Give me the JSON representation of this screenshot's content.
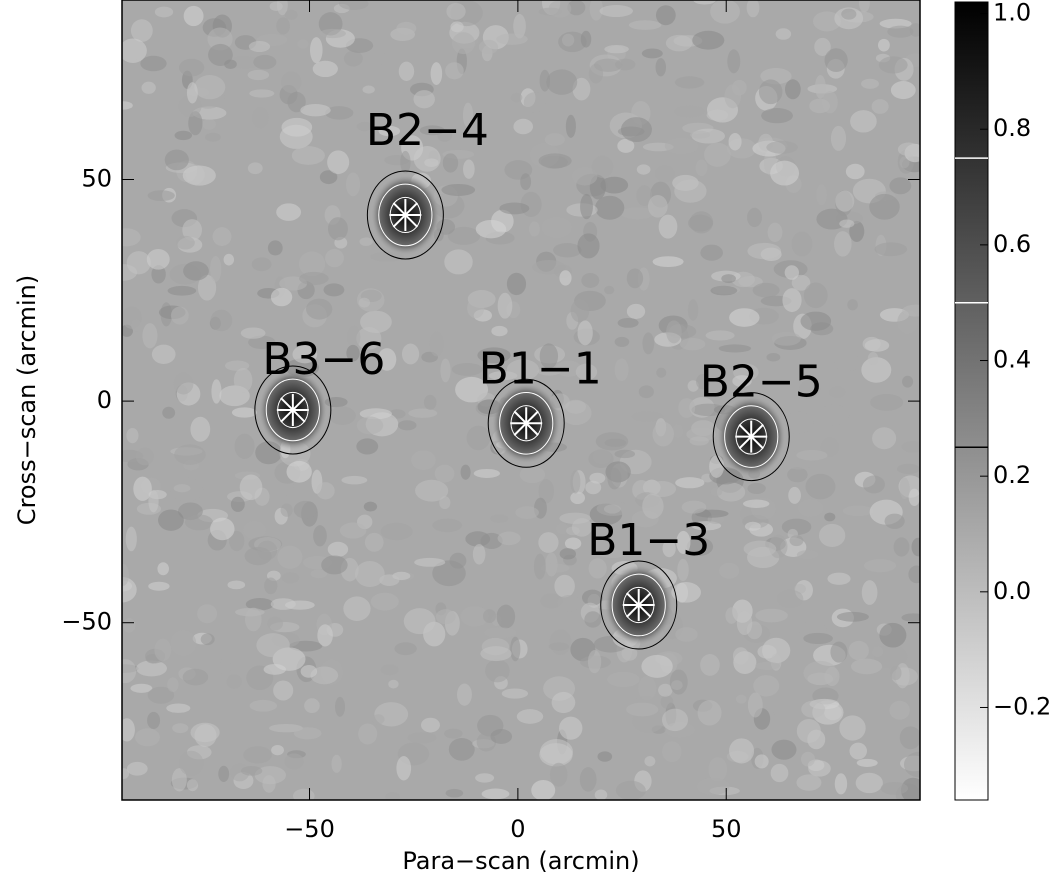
{
  "chart_data": {
    "type": "map",
    "x_label": "Para−scan (arcmin)",
    "y_label": "Cross−scan (arcmin)",
    "xlim": [
      -95,
      96.5
    ],
    "ylim": [
      -90,
      90.5
    ],
    "xticks": [
      {
        "value": -50,
        "label": "−50"
      },
      0,
      50
    ],
    "yticks": [
      {
        "value": -50,
        "label": "−50"
      },
      0,
      50
    ],
    "colorbar": {
      "lim": [
        -0.36,
        1.02
      ],
      "ticks": [
        {
          "value": -0.2,
          "label": "−0.2"
        },
        {
          "value": 0,
          "label": "0.0"
        },
        {
          "value": 0.2,
          "label": "0.2"
        },
        {
          "value": 0.4,
          "label": "0.4"
        },
        {
          "value": 0.6,
          "label": "0.6"
        },
        {
          "value": 0.8,
          "label": "0.8"
        },
        {
          "value": 1,
          "label": "1.0"
        }
      ]
    },
    "contour_levels": [
      {
        "value": 0.25,
        "color": "#000000"
      },
      {
        "value": 0.5,
        "color": "#ffffff"
      },
      {
        "value": 0.75,
        "color": "#ffffff"
      }
    ],
    "sources": [
      {
        "name": "B2−4",
        "x": -27,
        "y": 42
      },
      {
        "name": "B3−6",
        "x": -54,
        "y": -2
      },
      {
        "name": "B1−1",
        "x": 2,
        "y": -5
      },
      {
        "name": "B2−5",
        "x": 56,
        "y": -8
      },
      {
        "name": "B1−3",
        "x": 29,
        "y": -46
      }
    ]
  }
}
